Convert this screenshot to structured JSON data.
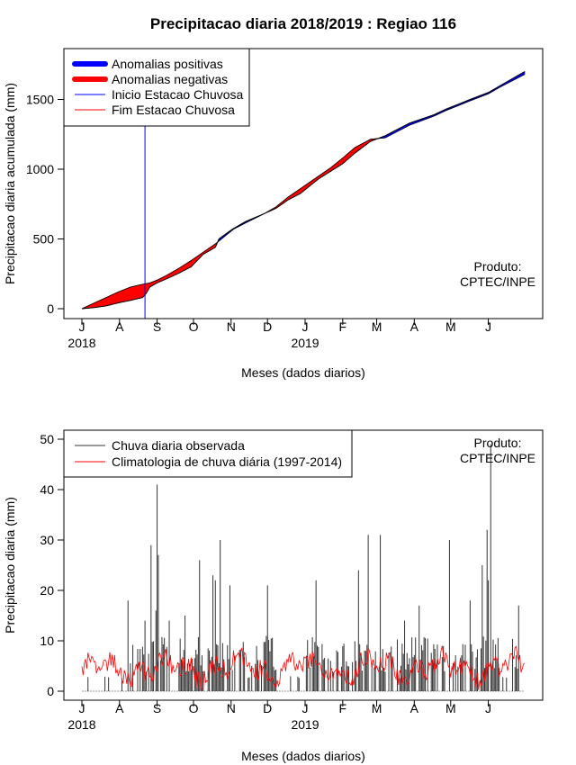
{
  "title": "Precipitacao diaria 2018/2019 : Regiao 116",
  "colors": {
    "anom_pos": "#0000ff",
    "anom_neg": "#ff0000",
    "obs": "#333333",
    "clim": "#ff0000",
    "inicio": "#0000ff"
  },
  "chart_data": [
    {
      "type": "area",
      "ylabel": "Precipitacao diaria acumulada (mm)",
      "xlabel": "Meses (dados diarios)",
      "ylim": [
        0,
        1800
      ],
      "y_ticks": [
        0,
        500,
        1000,
        1500
      ],
      "x_day_range": [
        0,
        365
      ],
      "month_ticks": [
        {
          "label": "J",
          "day": 0
        },
        {
          "label": "A",
          "day": 31
        },
        {
          "label": "S",
          "day": 62
        },
        {
          "label": "O",
          "day": 92
        },
        {
          "label": "N",
          "day": 123
        },
        {
          "label": "D",
          "day": 153
        },
        {
          "label": "J",
          "day": 184
        },
        {
          "label": "F",
          "day": 215
        },
        {
          "label": "M",
          "day": 243
        },
        {
          "label": "A",
          "day": 274
        },
        {
          "label": "M",
          "day": 304
        },
        {
          "label": "J",
          "day": 335
        }
      ],
      "year_labels": [
        {
          "label": "2018",
          "day": 0
        },
        {
          "label": "2019",
          "day": 184
        }
      ],
      "legend": [
        {
          "label": "Anomalias positivas",
          "kind": "thick",
          "color_key": "anom_pos"
        },
        {
          "label": "Anomalias negativas",
          "kind": "thick",
          "color_key": "anom_neg"
        },
        {
          "label": "Inicio Estacao Chuvosa",
          "kind": "thin",
          "color_key": "inicio"
        },
        {
          "label": "Fim Estacao Chuvosa",
          "kind": "thin",
          "color_key": "clim"
        }
      ],
      "inicio_estacao_day": 52,
      "observed_cumulative": {
        "days": [
          0,
          10,
          20,
          30,
          40,
          45,
          50,
          53,
          56,
          62,
          70,
          80,
          90,
          100,
          110,
          113,
          120,
          125,
          135,
          150,
          160,
          170,
          180,
          195,
          205,
          215,
          225,
          238,
          250,
          270,
          290,
          300,
          310,
          320,
          335,
          345,
          365
        ],
        "values": [
          0,
          8,
          20,
          42,
          60,
          70,
          80,
          110,
          155,
          185,
          215,
          255,
          300,
          390,
          440,
          500,
          545,
          575,
          625,
          680,
          720,
          780,
          825,
          930,
          985,
          1040,
          1115,
          1200,
          1240,
          1330,
          1390,
          1430,
          1465,
          1500,
          1550,
          1600,
          1700
        ]
      },
      "climatology_cumulative": {
        "days": [
          0,
          10,
          20,
          30,
          40,
          45,
          50,
          53,
          56,
          62,
          70,
          80,
          90,
          100,
          110,
          113,
          120,
          125,
          135,
          150,
          160,
          170,
          180,
          195,
          205,
          215,
          225,
          238,
          250,
          270,
          290,
          300,
          310,
          320,
          335,
          345,
          365
        ],
        "values": [
          0,
          40,
          80,
          120,
          155,
          165,
          175,
          180,
          185,
          205,
          240,
          290,
          345,
          405,
          465,
          485,
          535,
          570,
          615,
          680,
          730,
          800,
          860,
          950,
          1010,
          1080,
          1155,
          1215,
          1225,
          1315,
          1380,
          1420,
          1455,
          1490,
          1540,
          1590,
          1680
        ]
      },
      "annotation": [
        "Produto:",
        "CPTEC/INPE"
      ]
    },
    {
      "type": "bar",
      "ylabel": "Precipitacao diaria (mm)",
      "xlabel": "Meses (dados diarios)",
      "ylim": [
        0,
        50
      ],
      "y_ticks": [
        0,
        10,
        20,
        30,
        40,
        50
      ],
      "x_day_range": [
        0,
        365
      ],
      "legend": [
        {
          "label": "Chuva diaria observada",
          "color_key": "obs"
        },
        {
          "label": "Climatologia de chuva diária (1997-2014)",
          "color_key": "clim"
        }
      ],
      "observed_daily_peaks": [
        {
          "day": 38,
          "value": 18
        },
        {
          "day": 52,
          "value": 14
        },
        {
          "day": 57,
          "value": 29
        },
        {
          "day": 61,
          "value": 16
        },
        {
          "day": 62,
          "value": 41
        },
        {
          "day": 63,
          "value": 27
        },
        {
          "day": 72,
          "value": 14
        },
        {
          "day": 85,
          "value": 15
        },
        {
          "day": 97,
          "value": 26
        },
        {
          "day": 108,
          "value": 23
        },
        {
          "day": 110,
          "value": 22
        },
        {
          "day": 114,
          "value": 30
        },
        {
          "day": 122,
          "value": 21
        },
        {
          "day": 153,
          "value": 21
        },
        {
          "day": 193,
          "value": 22
        },
        {
          "day": 228,
          "value": 24
        },
        {
          "day": 236,
          "value": 31
        },
        {
          "day": 246,
          "value": 31
        },
        {
          "day": 266,
          "value": 14
        },
        {
          "day": 278,
          "value": 17
        },
        {
          "day": 303,
          "value": 30
        },
        {
          "day": 320,
          "value": 18
        },
        {
          "day": 330,
          "value": 25
        },
        {
          "day": 334,
          "value": 32
        },
        {
          "day": 335,
          "value": 22
        },
        {
          "day": 337,
          "value": 49
        },
        {
          "day": 360,
          "value": 17
        }
      ],
      "climatology_mean_mm": 4.5,
      "annotation": [
        "Produto:",
        "CPTEC/INPE"
      ]
    }
  ]
}
